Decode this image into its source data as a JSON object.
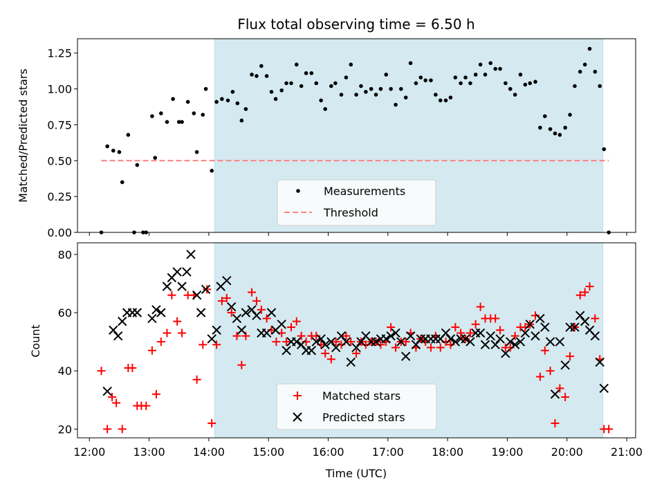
{
  "chart_data": [
    {
      "type": "scatter",
      "title": "Flux total observing time = 6.50 h",
      "xlabel": "",
      "ylabel": "Matched/Predicted stars",
      "ylim": [
        0,
        1.35
      ],
      "yticks": [
        "0.00",
        "0.25",
        "0.50",
        "0.75",
        "1.00",
        "1.25"
      ],
      "ytick_values": [
        0,
        0.25,
        0.5,
        0.75,
        1.0,
        1.25
      ],
      "xlim": [
        11.8,
        21.15
      ],
      "shaded_interval": [
        14.1,
        20.6
      ],
      "shade_color": "#d4eaf0",
      "legend_position": "lower center",
      "legend": [
        "Measurements",
        "Threshold"
      ],
      "series": [
        {
          "name": "Measurements",
          "color": "#000000",
          "marker": "dot",
          "x": [
            12.2,
            12.3,
            12.4,
            12.5,
            12.55,
            12.65,
            12.75,
            12.8,
            12.9,
            12.95,
            13.05,
            13.1,
            13.2,
            13.3,
            13.4,
            13.5,
            13.55,
            13.65,
            13.75,
            13.8,
            13.9,
            13.95,
            14.05,
            14.13,
            14.22,
            14.32,
            14.4,
            14.48,
            14.55,
            14.62,
            14.72,
            14.8,
            14.88,
            14.97,
            15.05,
            15.12,
            15.22,
            15.3,
            15.38,
            15.47,
            15.55,
            15.63,
            15.72,
            15.8,
            15.88,
            15.95,
            16.05,
            16.12,
            16.22,
            16.3,
            16.38,
            16.47,
            16.55,
            16.63,
            16.72,
            16.8,
            16.88,
            16.97,
            17.05,
            17.13,
            17.22,
            17.3,
            17.38,
            17.47,
            17.55,
            17.63,
            17.72,
            17.8,
            17.88,
            17.97,
            18.05,
            18.13,
            18.22,
            18.3,
            18.38,
            18.47,
            18.55,
            18.63,
            18.72,
            18.8,
            18.88,
            18.97,
            19.05,
            19.13,
            19.22,
            19.3,
            19.38,
            19.47,
            19.55,
            19.63,
            19.72,
            19.8,
            19.88,
            19.97,
            20.05,
            20.13,
            20.22,
            20.3,
            20.38,
            20.47,
            20.55,
            20.62,
            20.7
          ],
          "y": [
            0.0,
            0.6,
            0.57,
            0.56,
            0.35,
            0.68,
            0.0,
            0.47,
            0.0,
            0.0,
            0.81,
            0.52,
            0.83,
            0.77,
            0.93,
            0.77,
            0.77,
            0.91,
            0.83,
            0.56,
            0.82,
            1.0,
            0.43,
            0.91,
            0.93,
            0.92,
            0.98,
            0.9,
            0.78,
            0.86,
            1.1,
            1.09,
            1.16,
            1.09,
            0.98,
            0.93,
            0.99,
            1.04,
            1.04,
            1.17,
            1.02,
            1.11,
            1.11,
            1.04,
            0.92,
            0.86,
            1.02,
            1.04,
            0.96,
            1.08,
            1.17,
            0.96,
            1.02,
            0.98,
            1.0,
            0.96,
            1.0,
            1.1,
            1.0,
            0.89,
            1.0,
            0.94,
            1.18,
            1.04,
            1.08,
            1.06,
            1.06,
            0.96,
            0.92,
            0.92,
            0.94,
            1.08,
            1.04,
            1.08,
            1.04,
            1.1,
            1.17,
            1.1,
            1.18,
            1.14,
            1.14,
            1.04,
            1.0,
            0.96,
            1.1,
            1.03,
            1.04,
            1.05,
            0.73,
            0.81,
            0.72,
            0.69,
            0.68,
            0.73,
            0.82,
            1.02,
            1.12,
            1.17,
            1.28,
            1.12,
            1.02,
            0.58,
            0.0
          ]
        },
        {
          "name": "Threshold",
          "color": "#ff7f7f",
          "line": "dashed",
          "x": [
            12.2,
            20.7
          ],
          "y": [
            0.5,
            0.5
          ]
        }
      ]
    },
    {
      "type": "scatter",
      "title": "",
      "xlabel": "Time (UTC)",
      "ylabel": "Count",
      "ylim": [
        17,
        84
      ],
      "yticks": [
        "20",
        "40",
        "60",
        "80"
      ],
      "ytick_values": [
        20,
        40,
        60,
        80
      ],
      "xlim": [
        11.8,
        21.15
      ],
      "xticks": [
        "12:00",
        "13:00",
        "14:00",
        "15:00",
        "16:00",
        "17:00",
        "18:00",
        "19:00",
        "20:00",
        "21:00"
      ],
      "xtick_values": [
        12,
        13,
        14,
        15,
        16,
        17,
        18,
        19,
        20,
        21
      ],
      "shaded_interval": [
        14.1,
        20.6
      ],
      "shade_color": "#d4eaf0",
      "legend_position": "lower center",
      "legend": [
        "Matched stars",
        "Predicted stars"
      ],
      "series": [
        {
          "name": "Matched stars",
          "color": "#ff0000",
          "marker": "plus",
          "x": [
            12.2,
            12.3,
            12.38,
            12.45,
            12.55,
            12.65,
            12.72,
            12.8,
            12.87,
            12.95,
            13.05,
            13.12,
            13.2,
            13.3,
            13.38,
            13.47,
            13.55,
            13.65,
            13.75,
            13.8,
            13.9,
            13.97,
            14.05,
            14.13,
            14.22,
            14.3,
            14.38,
            14.47,
            14.55,
            14.62,
            14.72,
            14.8,
            14.88,
            14.97,
            15.05,
            15.13,
            15.22,
            15.3,
            15.38,
            15.47,
            15.55,
            15.63,
            15.72,
            15.8,
            15.88,
            15.95,
            16.05,
            16.13,
            16.22,
            16.3,
            16.38,
            16.47,
            16.55,
            16.63,
            16.72,
            16.8,
            16.88,
            16.97,
            17.05,
            17.13,
            17.22,
            17.3,
            17.38,
            17.47,
            17.55,
            17.63,
            17.72,
            17.8,
            17.88,
            17.97,
            18.05,
            18.13,
            18.22,
            18.3,
            18.38,
            18.47,
            18.55,
            18.63,
            18.72,
            18.8,
            18.88,
            18.97,
            19.05,
            19.13,
            19.22,
            19.3,
            19.38,
            19.47,
            19.55,
            19.63,
            19.72,
            19.8,
            19.88,
            19.97,
            20.05,
            20.13,
            20.22,
            20.3,
            20.38,
            20.47,
            20.55,
            20.62,
            20.7
          ],
          "y": [
            40,
            20,
            31,
            29,
            20,
            41,
            41,
            28,
            28,
            28,
            47,
            32,
            50,
            53,
            66,
            57,
            53,
            66,
            66,
            37,
            49,
            68,
            22,
            49,
            64,
            65,
            60,
            52,
            42,
            52,
            67,
            64,
            61,
            58,
            54,
            50,
            53,
            50,
            55,
            57,
            52,
            50,
            52,
            52,
            49,
            46,
            44,
            50,
            49,
            52,
            50,
            46,
            50,
            49,
            50,
            50,
            49,
            50,
            55,
            48,
            50,
            50,
            53,
            48,
            51,
            50,
            48,
            52,
            48,
            50,
            49,
            55,
            53,
            51,
            53,
            56,
            62,
            58,
            58,
            58,
            54,
            48,
            48,
            52,
            55,
            55,
            56,
            59,
            38,
            47,
            40,
            22,
            34,
            31,
            45,
            55,
            66,
            67,
            69,
            58,
            44,
            20,
            20
          ]
        },
        {
          "name": "Predicted stars",
          "color": "#000000",
          "marker": "x",
          "x": [
            12.3,
            12.4,
            12.48,
            12.55,
            12.63,
            12.72,
            12.8,
            13.05,
            13.12,
            13.2,
            13.3,
            13.38,
            13.47,
            13.55,
            13.63,
            13.7,
            13.8,
            13.87,
            13.95,
            14.05,
            14.13,
            14.2,
            14.3,
            14.38,
            14.47,
            14.55,
            14.62,
            14.72,
            14.8,
            14.88,
            14.97,
            15.05,
            15.12,
            15.22,
            15.3,
            15.38,
            15.47,
            15.55,
            15.63,
            15.72,
            15.8,
            15.88,
            15.95,
            16.05,
            16.13,
            16.22,
            16.3,
            16.38,
            16.47,
            16.55,
            16.63,
            16.72,
            16.8,
            16.88,
            16.97,
            17.05,
            17.13,
            17.22,
            17.3,
            17.38,
            17.47,
            17.55,
            17.63,
            17.72,
            17.8,
            17.88,
            17.97,
            18.05,
            18.13,
            18.22,
            18.3,
            18.38,
            18.47,
            18.55,
            18.63,
            18.72,
            18.8,
            18.88,
            18.97,
            19.05,
            19.13,
            19.22,
            19.3,
            19.38,
            19.47,
            19.55,
            19.63,
            19.72,
            19.8,
            19.88,
            19.97,
            20.05,
            20.13,
            20.22,
            20.3,
            20.38,
            20.47,
            20.55,
            20.62
          ],
          "y": [
            33,
            54,
            52,
            57,
            60,
            60,
            60,
            58,
            61,
            60,
            69,
            72,
            74,
            69,
            74,
            80,
            66,
            60,
            68,
            51,
            54,
            69,
            71,
            62,
            58,
            54,
            60,
            61,
            59,
            53,
            53,
            60,
            54,
            56,
            47,
            50,
            50,
            49,
            47,
            47,
            50,
            51,
            49,
            50,
            48,
            52,
            50,
            43,
            48,
            50,
            52,
            50,
            50,
            51,
            51,
            52,
            53,
            50,
            45,
            52,
            49,
            51,
            51,
            51,
            51,
            51,
            53,
            51,
            50,
            51,
            51,
            50,
            53,
            53,
            49,
            52,
            49,
            51,
            46,
            50,
            49,
            50,
            53,
            56,
            52,
            58,
            55,
            50,
            32,
            50,
            42,
            55,
            55,
            59,
            57,
            54,
            52,
            43,
            34
          ]
        }
      ]
    }
  ]
}
